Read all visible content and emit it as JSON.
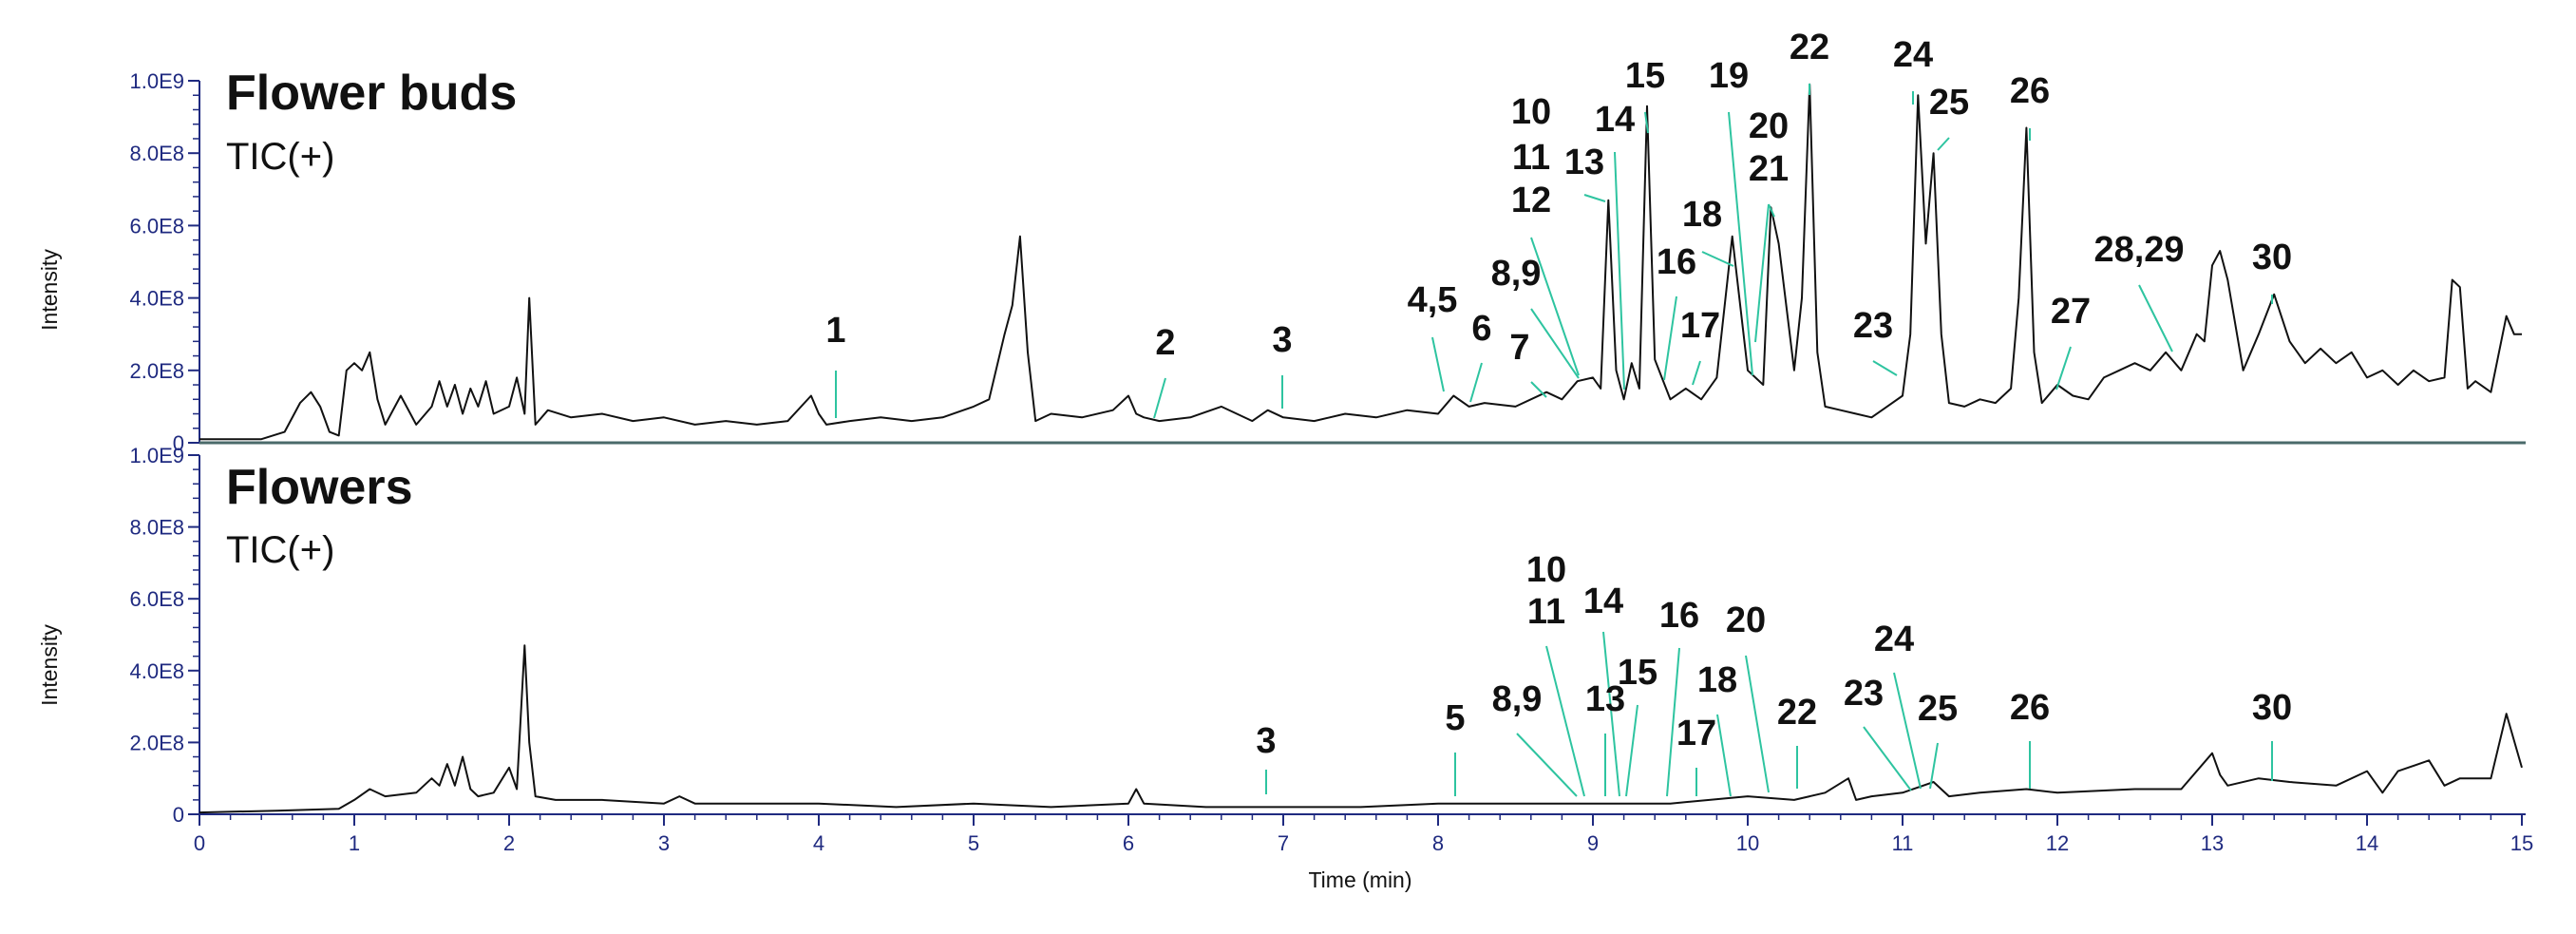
{
  "chart_data": [
    {
      "type": "line",
      "title": "Flower buds",
      "subtitle": "TIC(+)",
      "ylabel": "Intensity",
      "xlabel": "",
      "xlim": [
        0,
        15
      ],
      "ylim": [
        0,
        1000000000.0
      ],
      "y_ticks": [
        "0",
        "2.0E8",
        "4.0E8",
        "6.0E8",
        "8.0E8",
        "1.0E9"
      ],
      "colors": {
        "trace": "#111111",
        "axis": "#1f2a80",
        "annotation": "#2ec4a0"
      },
      "x": [
        0,
        0.2,
        0.4,
        0.55,
        0.65,
        0.72,
        0.78,
        0.84,
        0.9,
        0.95,
        1.0,
        1.05,
        1.1,
        1.15,
        1.2,
        1.3,
        1.4,
        1.5,
        1.55,
        1.6,
        1.65,
        1.7,
        1.75,
        1.8,
        1.85,
        1.9,
        2.0,
        2.05,
        2.1,
        2.13,
        2.17,
        2.25,
        2.4,
        2.6,
        2.8,
        3.0,
        3.2,
        3.4,
        3.6,
        3.8,
        3.95,
        4.0,
        4.05,
        4.2,
        4.4,
        4.6,
        4.8,
        5.0,
        5.1,
        5.2,
        5.25,
        5.3,
        5.35,
        5.4,
        5.5,
        5.7,
        5.9,
        6.0,
        6.05,
        6.1,
        6.2,
        6.4,
        6.6,
        6.8,
        6.9,
        7.0,
        7.2,
        7.4,
        7.6,
        7.8,
        8.0,
        8.1,
        8.2,
        8.3,
        8.5,
        8.7,
        8.8,
        8.9,
        9.0,
        9.05,
        9.1,
        9.15,
        9.2,
        9.25,
        9.3,
        9.35,
        9.4,
        9.5,
        9.6,
        9.7,
        9.8,
        9.9,
        10.0,
        10.1,
        10.15,
        10.2,
        10.3,
        10.35,
        10.4,
        10.45,
        10.5,
        10.6,
        10.7,
        10.8,
        10.9,
        11.0,
        11.05,
        11.1,
        11.15,
        11.2,
        11.25,
        11.3,
        11.4,
        11.5,
        11.6,
        11.7,
        11.75,
        11.8,
        11.85,
        11.9,
        12.0,
        12.1,
        12.2,
        12.3,
        12.4,
        12.5,
        12.6,
        12.7,
        12.8,
        12.9,
        12.95,
        13.0,
        13.05,
        13.1,
        13.2,
        13.3,
        13.4,
        13.5,
        13.6,
        13.7,
        13.8,
        13.9,
        14.0,
        14.1,
        14.2,
        14.3,
        14.4,
        14.5,
        14.55,
        14.6,
        14.65,
        14.7,
        14.8,
        14.9,
        14.95,
        15.0
      ],
      "values": [
        10000000.0,
        10000000.0,
        10000000.0,
        30000000.0,
        110000000.0,
        140000000.0,
        100000000.0,
        30000000.0,
        20000000.0,
        200000000.0,
        220000000.0,
        200000000.0,
        250000000.0,
        120000000.0,
        50000000.0,
        130000000.0,
        50000000.0,
        100000000.0,
        170000000.0,
        100000000.0,
        160000000.0,
        80000000.0,
        150000000.0,
        100000000.0,
        170000000.0,
        80000000.0,
        100000000.0,
        180000000.0,
        80000000.0,
        400000000.0,
        50000000.0,
        90000000.0,
        70000000.0,
        80000000.0,
        60000000.0,
        70000000.0,
        50000000.0,
        60000000.0,
        50000000.0,
        60000000.0,
        130000000.0,
        80000000.0,
        50000000.0,
        60000000.0,
        70000000.0,
        60000000.0,
        70000000.0,
        100000000.0,
        120000000.0,
        300000000.0,
        380000000.0,
        570000000.0,
        250000000.0,
        60000000.0,
        80000000.0,
        70000000.0,
        90000000.0,
        130000000.0,
        80000000.0,
        70000000.0,
        60000000.0,
        70000000.0,
        100000000.0,
        60000000.0,
        90000000.0,
        70000000.0,
        60000000.0,
        80000000.0,
        70000000.0,
        90000000.0,
        80000000.0,
        130000000.0,
        100000000.0,
        110000000.0,
        100000000.0,
        140000000.0,
        120000000.0,
        170000000.0,
        180000000.0,
        150000000.0,
        670000000.0,
        200000000.0,
        120000000.0,
        220000000.0,
        150000000.0,
        930000000.0,
        230000000.0,
        120000000.0,
        150000000.0,
        120000000.0,
        180000000.0,
        570000000.0,
        200000000.0,
        160000000.0,
        650000000.0,
        550000000.0,
        200000000.0,
        400000000.0,
        990000000.0,
        250000000.0,
        100000000.0,
        90000000.0,
        80000000.0,
        70000000.0,
        100000000.0,
        130000000.0,
        300000000.0,
        960000000.0,
        550000000.0,
        800000000.0,
        300000000.0,
        110000000.0,
        100000000.0,
        120000000.0,
        110000000.0,
        150000000.0,
        400000000.0,
        870000000.0,
        250000000.0,
        110000000.0,
        160000000.0,
        130000000.0,
        120000000.0,
        180000000.0,
        200000000.0,
        220000000.0,
        200000000.0,
        250000000.0,
        200000000.0,
        300000000.0,
        280000000.0,
        490000000.0,
        530000000.0,
        450000000.0,
        200000000.0,
        300000000.0,
        410000000.0,
        280000000.0,
        220000000.0,
        260000000.0,
        220000000.0,
        250000000.0,
        180000000.0,
        200000000.0,
        160000000.0,
        200000000.0,
        170000000.0,
        180000000.0,
        450000000.0,
        430000000.0,
        150000000.0,
        170000000.0,
        140000000.0,
        350000000.0,
        300000000.0,
        300000000.0
      ],
      "peak_labels": [
        {
          "text": "1",
          "time": 4.1
        },
        {
          "text": "2",
          "time": 6.2
        },
        {
          "text": "3",
          "time": 7.0
        },
        {
          "text": "4,5",
          "time": 8.05
        },
        {
          "text": "6",
          "time": 8.2
        },
        {
          "text": "7",
          "time": 8.65
        },
        {
          "text": "8,9",
          "time": 8.85
        },
        {
          "text": "10",
          "time": 8.9
        },
        {
          "text": "11",
          "time": 8.9
        },
        {
          "text": "12",
          "time": 8.9
        },
        {
          "text": "13",
          "time": 9.1
        },
        {
          "text": "14",
          "time": 9.2
        },
        {
          "text": "15",
          "time": 9.35
        },
        {
          "text": "16",
          "time": 9.45
        },
        {
          "text": "17",
          "time": 9.7
        },
        {
          "text": "18",
          "time": 9.9
        },
        {
          "text": "19",
          "time": 10.0
        },
        {
          "text": "20",
          "time": 10.1
        },
        {
          "text": "21",
          "time": 10.1
        },
        {
          "text": "22",
          "time": 10.4
        },
        {
          "text": "23",
          "time": 10.9
        },
        {
          "text": "24",
          "time": 11.05
        },
        {
          "text": "25",
          "time": 11.2
        },
        {
          "text": "26",
          "time": 11.8
        },
        {
          "text": "27",
          "time": 12.0
        },
        {
          "text": "28,29",
          "time": 12.7
        },
        {
          "text": "30",
          "time": 13.4
        }
      ]
    },
    {
      "type": "line",
      "title": "Flowers",
      "subtitle": "TIC(+)",
      "ylabel": "Intensity",
      "xlabel": "Time (min)",
      "xlim": [
        0,
        15
      ],
      "ylim": [
        0,
        1000000000.0
      ],
      "y_ticks": [
        "0",
        "2.0E8",
        "4.0E8",
        "6.0E8",
        "8.0E8",
        "1.0E9"
      ],
      "x_ticks": [
        "0",
        "1",
        "2",
        "3",
        "4",
        "5",
        "6",
        "7",
        "8",
        "9",
        "10",
        "11",
        "12",
        "13",
        "14",
        "15"
      ],
      "colors": {
        "trace": "#111111",
        "axis": "#1f2a80",
        "annotation": "#2ec4a0"
      },
      "x": [
        0,
        0.5,
        0.9,
        1.0,
        1.1,
        1.2,
        1.4,
        1.5,
        1.55,
        1.6,
        1.65,
        1.7,
        1.75,
        1.8,
        1.9,
        2.0,
        2.05,
        2.1,
        2.13,
        2.17,
        2.3,
        2.6,
        3.0,
        3.1,
        3.2,
        3.5,
        4.0,
        4.5,
        5.0,
        5.5,
        6.0,
        6.05,
        6.1,
        6.5,
        7.0,
        7.5,
        8.0,
        8.5,
        9.0,
        9.5,
        10.0,
        10.3,
        10.5,
        10.65,
        10.7,
        10.8,
        11.0,
        11.2,
        11.3,
        11.5,
        11.8,
        12.0,
        12.5,
        12.8,
        13.0,
        13.05,
        13.1,
        13.3,
        13.5,
        13.8,
        14.0,
        14.1,
        14.2,
        14.4,
        14.5,
        14.6,
        14.8,
        14.9,
        15.0
      ],
      "values": [
        5000000.0,
        10000000.0,
        15000000.0,
        40000000.0,
        70000000.0,
        50000000.0,
        60000000.0,
        100000000.0,
        80000000.0,
        140000000.0,
        80000000.0,
        160000000.0,
        70000000.0,
        50000000.0,
        60000000.0,
        130000000.0,
        70000000.0,
        470000000.0,
        200000000.0,
        50000000.0,
        40000000.0,
        40000000.0,
        30000000.0,
        50000000.0,
        30000000.0,
        30000000.0,
        30000000.0,
        20000000.0,
        30000000.0,
        20000000.0,
        30000000.0,
        70000000.0,
        30000000.0,
        20000000.0,
        20000000.0,
        20000000.0,
        30000000.0,
        30000000.0,
        30000000.0,
        30000000.0,
        50000000.0,
        40000000.0,
        60000000.0,
        100000000.0,
        40000000.0,
        50000000.0,
        60000000.0,
        90000000.0,
        50000000.0,
        60000000.0,
        70000000.0,
        60000000.0,
        70000000.0,
        70000000.0,
        170000000.0,
        110000000.0,
        80000000.0,
        100000000.0,
        90000000.0,
        80000000.0,
        120000000.0,
        60000000.0,
        120000000.0,
        150000000.0,
        80000000.0,
        100000000.0,
        100000000.0,
        280000000.0,
        130000000.0
      ],
      "peak_labels": [
        {
          "text": "3",
          "time": 6.9
        },
        {
          "text": "5",
          "time": 8.1
        },
        {
          "text": "8,9",
          "time": 8.9
        },
        {
          "text": "10",
          "time": 9.0
        },
        {
          "text": "11",
          "time": 9.0
        },
        {
          "text": "13",
          "time": 9.1
        },
        {
          "text": "14",
          "time": 9.2
        },
        {
          "text": "15",
          "time": 9.25
        },
        {
          "text": "16",
          "time": 9.5
        },
        {
          "text": "17",
          "time": 9.7
        },
        {
          "text": "18",
          "time": 9.9
        },
        {
          "text": "20",
          "time": 10.1
        },
        {
          "text": "22",
          "time": 10.35
        },
        {
          "text": "23",
          "time": 11.0
        },
        {
          "text": "24",
          "time": 11.1
        },
        {
          "text": "25",
          "time": 11.2
        },
        {
          "text": "26",
          "time": 11.8
        },
        {
          "text": "30",
          "time": 13.4
        }
      ]
    }
  ]
}
